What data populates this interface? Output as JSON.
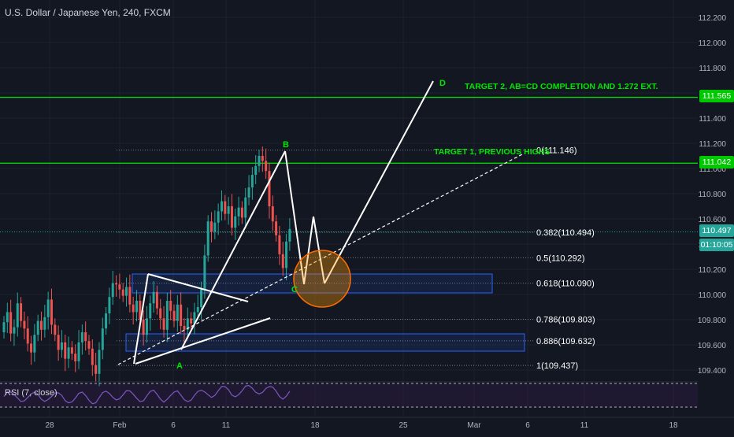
{
  "header": {
    "title": "U.S. Dollar / Japanese Yen, 240, FXCM"
  },
  "rsi": {
    "label": "RSI (7, close)"
  },
  "price_tags": {
    "target2": "111.565",
    "target1": "111.042",
    "current": "110.497",
    "countdown": "01:10:05"
  },
  "annotations": {
    "target2_text": "TARGET 2, AB=CD COMPLETION AND 1.272 EXT.",
    "target1_text": "TARGET 1, PREVIOUS HIGHS",
    "point_a": "A",
    "point_b": "B",
    "point_c": "C",
    "point_d": "D"
  },
  "fib_levels": [
    {
      "label": "0(111.146)",
      "price": 111.146
    },
    {
      "label": "0.382(110.494)",
      "price": 110.494
    },
    {
      "label": "0.5(110.292)",
      "price": 110.292
    },
    {
      "label": "0.618(110.090)",
      "price": 110.09
    },
    {
      "label": "0.786(109.803)",
      "price": 109.803
    },
    {
      "label": "0.886(109.632)",
      "price": 109.632
    },
    {
      "label": "1(109.437)",
      "price": 109.437
    }
  ],
  "colors": {
    "background": "#131722",
    "up": "#26a69a",
    "down": "#ef5350",
    "accent_green": "#00e600",
    "box_border": "#2962ff",
    "circle": "#ff6d00",
    "tag_green": "#00c800",
    "tag_current": "#26a69a"
  },
  "chart_data": {
    "type": "candlestick",
    "instrument": "U.S. Dollar / Japanese Yen",
    "timeframe": "240",
    "source": "FXCM",
    "ylim": [
      109.3,
      112.3
    ],
    "y_ticks": [
      112.2,
      112.0,
      111.8,
      111.6,
      111.4,
      111.2,
      111.0,
      110.8,
      110.6,
      110.4,
      110.2,
      110.0,
      109.8,
      109.6,
      109.4
    ],
    "y_tick_labels": [
      "112.200",
      "112.000",
      "111.800",
      "111.600",
      "111.400",
      "111.200",
      "111.000",
      "110.800",
      "110.600",
      "110.400",
      "110.200",
      "110.000",
      "109.800",
      "109.600",
      "109.400"
    ],
    "x_ticks": [
      "28",
      "Feb",
      "6",
      "11",
      "18",
      "25",
      "Mar",
      "6",
      "11",
      "18"
    ],
    "horizontal_lines": [
      111.565,
      111.042
    ],
    "current_price": 110.497,
    "candles_close": [
      109.78,
      109.86,
      109.69,
      109.74,
      109.93,
      109.79,
      109.73,
      109.61,
      109.54,
      109.68,
      109.79,
      109.72,
      109.82,
      109.96,
      109.76,
      109.68,
      109.56,
      109.62,
      109.49,
      109.58,
      109.53,
      109.47,
      109.62,
      109.7,
      109.63,
      109.57,
      109.44,
      109.37,
      109.56,
      109.73,
      109.85,
      109.98,
      110.09,
      110.08,
      110.04,
      109.99,
      110.06,
      109.92,
      109.86,
      109.95,
      109.8,
      109.68,
      109.81,
      109.93,
      110.02,
      109.89,
      109.81,
      109.72,
      109.95,
      109.87,
      109.79,
      109.92,
      109.75,
      109.72,
      109.81,
      109.77,
      109.86,
      109.9,
      110.04,
      110.31,
      110.58,
      110.5,
      110.57,
      110.66,
      110.74,
      110.64,
      110.7,
      110.53,
      110.62,
      110.69,
      110.61,
      110.77,
      110.85,
      110.95,
      111.02,
      111.1,
      111.06,
      110.98,
      110.7,
      110.58,
      110.47,
      110.32,
      110.21,
      110.42,
      110.52
    ],
    "series": [
      {
        "name": "Fibonacci retracement",
        "values": [
          111.146,
          110.494,
          110.292,
          110.09,
          109.803,
          109.632,
          109.437
        ]
      }
    ]
  }
}
